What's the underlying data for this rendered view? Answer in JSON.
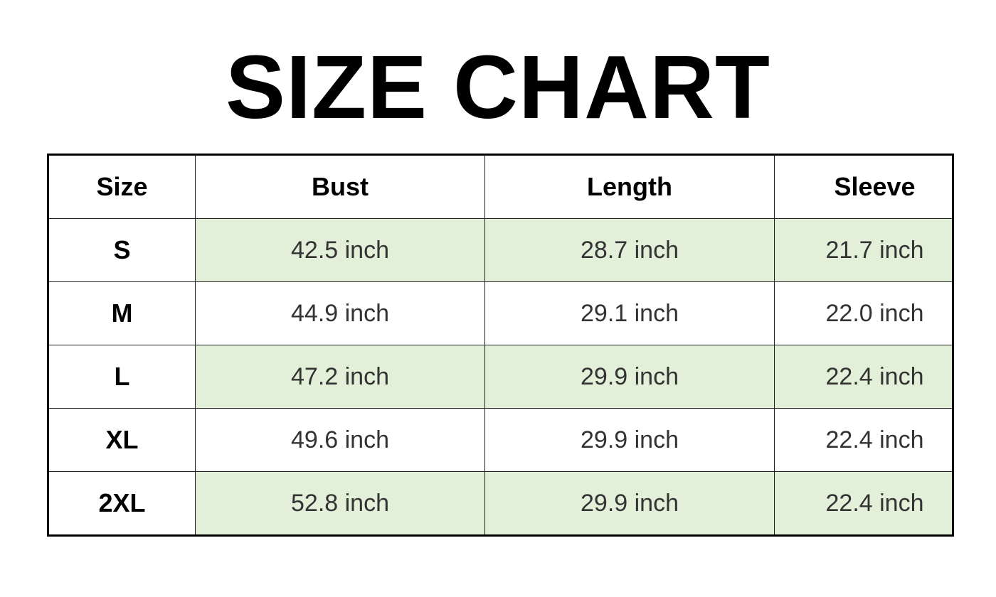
{
  "title": "SIZE CHART",
  "table": {
    "headers": [
      "Size",
      "Bust",
      "Length",
      "Sleeve"
    ],
    "rows": [
      [
        "S",
        "42.5 inch",
        "28.7 inch",
        "21.7 inch"
      ],
      [
        "M",
        "44.9 inch",
        "29.1 inch",
        "22.0 inch"
      ],
      [
        "L",
        "47.2 inch",
        "29.9 inch",
        "22.4 inch"
      ],
      [
        "XL",
        "49.6 inch",
        "29.9 inch",
        "22.4 inch"
      ],
      [
        "2XL",
        "52.8 inch",
        "29.9 inch",
        "22.4 inch"
      ]
    ]
  },
  "colors": {
    "stripe": "#e2f0d9",
    "border": "#000000"
  }
}
